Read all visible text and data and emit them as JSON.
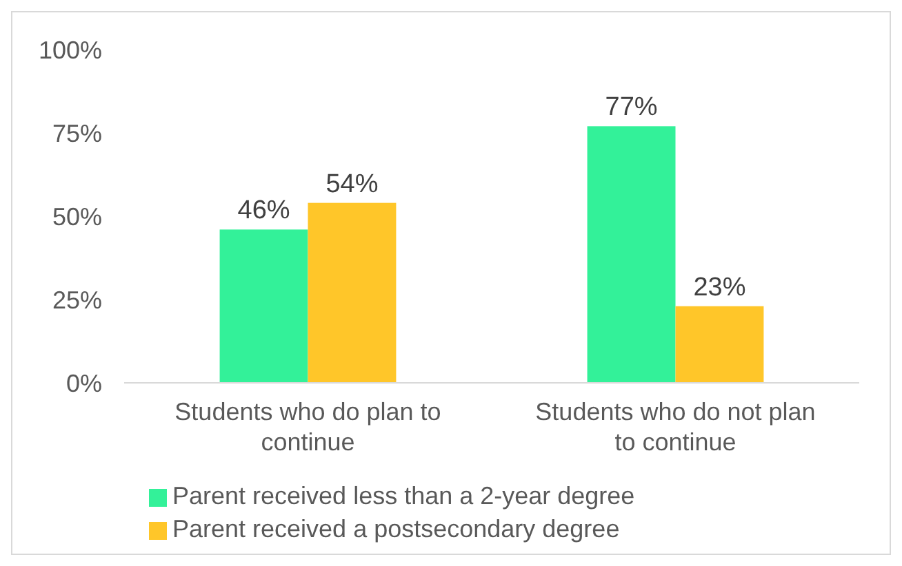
{
  "chart_data": {
    "type": "bar",
    "categories": [
      "Students who do plan to continue",
      "Students who do not plan to continue"
    ],
    "series": [
      {
        "name": "Parent received less than a 2-year degree",
        "color": "#33f199",
        "values": [
          46,
          77
        ],
        "value_labels": [
          "46%",
          "77%"
        ]
      },
      {
        "name": "Parent received a postsecondary degree",
        "color": "#ffc629",
        "values": [
          54,
          23
        ],
        "value_labels": [
          "54%",
          "23%"
        ]
      }
    ],
    "ylim": [
      0,
      100
    ],
    "yticks": [
      {
        "value": 0,
        "label": "0%"
      },
      {
        "value": 25,
        "label": "25%"
      },
      {
        "value": 50,
        "label": "50%"
      },
      {
        "value": 75,
        "label": "75%"
      },
      {
        "value": 100,
        "label": "100%"
      }
    ],
    "grid": false,
    "legend": "bottom"
  }
}
